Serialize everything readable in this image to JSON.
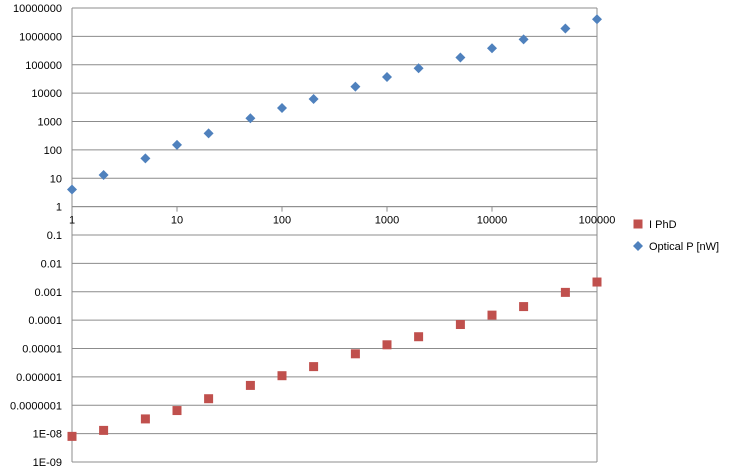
{
  "chart_data": {
    "type": "scatter",
    "x_scale": "log",
    "y_scale": "log",
    "grid": true,
    "legend_position": "right",
    "xlim": [
      1,
      100000
    ],
    "ylim": [
      1e-09,
      10000000
    ],
    "x_ticks": [
      {
        "value": 1,
        "label": "1"
      },
      {
        "value": 10,
        "label": "10"
      },
      {
        "value": 100,
        "label": "100"
      },
      {
        "value": 1000,
        "label": "1000"
      },
      {
        "value": 10000,
        "label": "10000"
      },
      {
        "value": 100000,
        "label": "100000"
      }
    ],
    "y_ticks": [
      {
        "value": 10000000,
        "label": "10000000"
      },
      {
        "value": 1000000,
        "label": "1000000"
      },
      {
        "value": 100000,
        "label": "100000"
      },
      {
        "value": 10000,
        "label": "10000"
      },
      {
        "value": 1000,
        "label": "1000"
      },
      {
        "value": 100,
        "label": "100"
      },
      {
        "value": 10,
        "label": "10"
      },
      {
        "value": 1,
        "label": "1"
      },
      {
        "value": 0.1,
        "label": "0.1"
      },
      {
        "value": 0.01,
        "label": "0.01"
      },
      {
        "value": 0.001,
        "label": "0.001"
      },
      {
        "value": 0.0001,
        "label": "0.0001"
      },
      {
        "value": 1e-05,
        "label": "0.00001"
      },
      {
        "value": 1e-06,
        "label": "0.000001"
      },
      {
        "value": 1e-07,
        "label": "0.0000001"
      },
      {
        "value": 1e-08,
        "label": "1E-08"
      },
      {
        "value": 1e-09,
        "label": "1E-09"
      }
    ],
    "series": [
      {
        "name": "I PhD",
        "color": "#C0504D",
        "marker": "square",
        "points": [
          {
            "x": 1,
            "y": 8e-09
          },
          {
            "x": 2,
            "y": 1.3e-08
          },
          {
            "x": 5,
            "y": 3.3e-08
          },
          {
            "x": 10,
            "y": 6.5e-08
          },
          {
            "x": 20,
            "y": 1.7e-07
          },
          {
            "x": 50,
            "y": 5e-07
          },
          {
            "x": 100,
            "y": 1.1e-06
          },
          {
            "x": 200,
            "y": 2.3e-06
          },
          {
            "x": 500,
            "y": 6.5e-06
          },
          {
            "x": 1000,
            "y": 1.35e-05
          },
          {
            "x": 2000,
            "y": 2.6e-05
          },
          {
            "x": 5000,
            "y": 7e-05
          },
          {
            "x": 10000,
            "y": 0.00015
          },
          {
            "x": 20000,
            "y": 0.0003
          },
          {
            "x": 50000,
            "y": 0.00095
          },
          {
            "x": 100000,
            "y": 0.0022
          }
        ]
      },
      {
        "name": "Optical P [nW]",
        "color": "#4F81BD",
        "marker": "diamond",
        "points": [
          {
            "x": 1,
            "y": 4
          },
          {
            "x": 2,
            "y": 13
          },
          {
            "x": 5,
            "y": 50
          },
          {
            "x": 10,
            "y": 150
          },
          {
            "x": 20,
            "y": 380
          },
          {
            "x": 50,
            "y": 1300
          },
          {
            "x": 100,
            "y": 3000
          },
          {
            "x": 200,
            "y": 6200
          },
          {
            "x": 500,
            "y": 17000
          },
          {
            "x": 1000,
            "y": 37000
          },
          {
            "x": 2000,
            "y": 75000
          },
          {
            "x": 5000,
            "y": 180000
          },
          {
            "x": 10000,
            "y": 380000
          },
          {
            "x": 20000,
            "y": 780000
          },
          {
            "x": 50000,
            "y": 1900000
          },
          {
            "x": 100000,
            "y": 4000000
          }
        ]
      }
    ]
  }
}
